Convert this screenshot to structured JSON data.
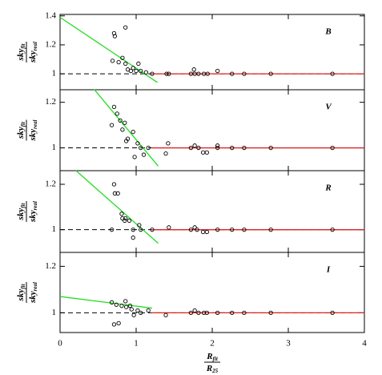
{
  "chart_data": [
    {
      "type": "scatter",
      "label": "B",
      "ylabel": {
        "numerator": "sky",
        "numerator_sub": "fit",
        "denominator": "sky",
        "denominator_sub": "real"
      },
      "xlim": [
        0,
        4
      ],
      "ylim": [
        0.89,
        1.41
      ],
      "xticks": [
        0,
        1,
        2,
        3,
        4
      ],
      "yticks": [
        1,
        1.2,
        1.4
      ],
      "x": [
        0.71,
        0.72,
        0.86,
        0.69,
        0.77,
        0.82,
        0.86,
        0.89,
        0.93,
        0.96,
        1.0,
        1.03,
        1.06,
        1.13,
        1.21,
        1.4,
        1.43,
        1.72,
        1.76,
        1.77,
        1.82,
        1.89,
        1.94,
        2.07,
        2.26,
        2.42,
        2.77,
        3.58
      ],
      "y": [
        1.28,
        1.26,
        1.32,
        1.09,
        1.08,
        1.11,
        1.07,
        1.03,
        1.02,
        1.04,
        1.02,
        1.07,
        1.02,
        1.01,
        1.0,
        1.0,
        1.0,
        1.0,
        1.03,
        1.0,
        1.0,
        1.0,
        1.0,
        1.02,
        1.0,
        1.0,
        1.0,
        1.0
      ],
      "fit_line": {
        "x": [
          0,
          1.28
        ],
        "y": [
          1.39,
          0.94
        ],
        "color": "#22dd22"
      },
      "flat_line": {
        "x": [
          1.2,
          4
        ],
        "y": [
          1,
          1
        ],
        "color": "#dd2222"
      },
      "reference_line": {
        "x": [
          0,
          4
        ],
        "y": [
          1,
          1
        ],
        "color": "#000000"
      }
    },
    {
      "type": "scatter",
      "label": "V",
      "ylabel": {
        "numerator": "sky",
        "numerator_sub": "fit",
        "denominator": "sky",
        "denominator_sub": "real"
      },
      "xlim": [
        0,
        4
      ],
      "ylim": [
        0.9,
        1.255
      ],
      "xticks": [
        0,
        1,
        2,
        3,
        4
      ],
      "yticks": [
        1,
        1.2
      ],
      "x": [
        0.71,
        0.68,
        0.75,
        0.79,
        0.82,
        0.85,
        0.89,
        0.87,
        0.96,
        0.98,
        1.02,
        1.06,
        1.1,
        1.16,
        1.39,
        1.42,
        1.72,
        1.77,
        1.82,
        1.88,
        1.93,
        2.07,
        2.07,
        2.26,
        2.42,
        2.77,
        3.58
      ],
      "y": [
        1.18,
        1.1,
        1.15,
        1.12,
        1.08,
        1.11,
        1.04,
        1.03,
        1.07,
        0.96,
        1.02,
        1.0,
        0.97,
        1.0,
        0.975,
        1.02,
        1.0,
        1.01,
        1.0,
        0.98,
        0.98,
        1.01,
        1.0,
        1.0,
        1.0,
        1.0,
        1.0
      ],
      "fit_line": {
        "x": [
          0.45,
          1.29
        ],
        "y": [
          1.256,
          0.92
        ],
        "color": "#22dd22"
      },
      "flat_line": {
        "x": [
          1.2,
          4
        ],
        "y": [
          1,
          1
        ],
        "color": "#dd2222"
      },
      "reference_line": {
        "x": [
          0,
          4
        ],
        "y": [
          1,
          1
        ],
        "color": "#000000"
      }
    },
    {
      "type": "scatter",
      "label": "R",
      "ylabel": {
        "numerator": "sky",
        "numerator_sub": "fit",
        "denominator": "sky",
        "denominator_sub": "real"
      },
      "xlim": [
        0,
        4
      ],
      "ylim": [
        0.9,
        1.26
      ],
      "xticks": [
        0,
        1,
        2,
        3,
        4
      ],
      "yticks": [
        1,
        1.2
      ],
      "x": [
        0.71,
        0.72,
        0.76,
        0.68,
        0.81,
        0.82,
        0.86,
        0.91,
        0.85,
        0.96,
        0.96,
        1.04,
        1.06,
        1.21,
        1.43,
        1.72,
        1.77,
        1.8,
        1.88,
        1.93,
        2.07,
        2.26,
        2.42,
        2.77,
        3.58
      ],
      "y": [
        1.2,
        1.16,
        1.16,
        1.0,
        1.07,
        1.05,
        1.05,
        1.04,
        1.04,
        1.0,
        0.965,
        1.02,
        1.0,
        1.0,
        1.01,
        1.0,
        1.01,
        1.0,
        0.99,
        0.99,
        1.0,
        1.0,
        1.0,
        1.0,
        1.0
      ],
      "fit_line": {
        "x": [
          0.21,
          1.29
        ],
        "y": [
          1.26,
          0.94
        ],
        "color": "#22dd22"
      },
      "flat_line": {
        "x": [
          1.2,
          4
        ],
        "y": [
          1,
          1
        ],
        "color": "#dd2222"
      },
      "reference_line": {
        "x": [
          0,
          4
        ],
        "y": [
          1,
          1
        ],
        "color": "#000000"
      }
    },
    {
      "type": "scatter",
      "label": "I",
      "ylabel": {
        "numerator": "sky",
        "numerator_sub": "fit",
        "denominator": "sky",
        "denominator_sub": "real"
      },
      "xlabel": {
        "numerator": "R",
        "numerator_sub": "fit",
        "denominator": "R",
        "denominator_sub": "25"
      },
      "xlim": [
        0,
        4
      ],
      "ylim": [
        0.915,
        1.26
      ],
      "xticks": [
        0,
        1,
        2,
        3,
        4
      ],
      "yticks": [
        1,
        1.2
      ],
      "x": [
        0.68,
        0.74,
        0.81,
        0.86,
        0.87,
        0.92,
        0.94,
        0.71,
        0.77,
        0.97,
        1.02,
        1.06,
        1.16,
        1.39,
        1.72,
        1.77,
        1.82,
        1.89,
        1.93,
        2.07,
        2.26,
        2.42,
        2.77,
        3.58
      ],
      "y": [
        1.045,
        1.035,
        1.03,
        1.05,
        1.025,
        1.03,
        1.015,
        0.95,
        0.955,
        0.99,
        1.01,
        1.0,
        1.01,
        0.99,
        1.0,
        1.01,
        1.0,
        1.0,
        1.0,
        1.0,
        1.0,
        1.0,
        1.0,
        1.0
      ],
      "fit_line": {
        "x": [
          0,
          1.21
        ],
        "y": [
          1.07,
          1.02
        ],
        "color": "#22dd22"
      },
      "flat_line": {
        "x": [
          1.2,
          4
        ],
        "y": [
          1,
          1
        ],
        "color": "#dd2222"
      },
      "reference_line": {
        "x": [
          0,
          4
        ],
        "y": [
          1,
          1
        ],
        "color": "#000000"
      }
    }
  ]
}
